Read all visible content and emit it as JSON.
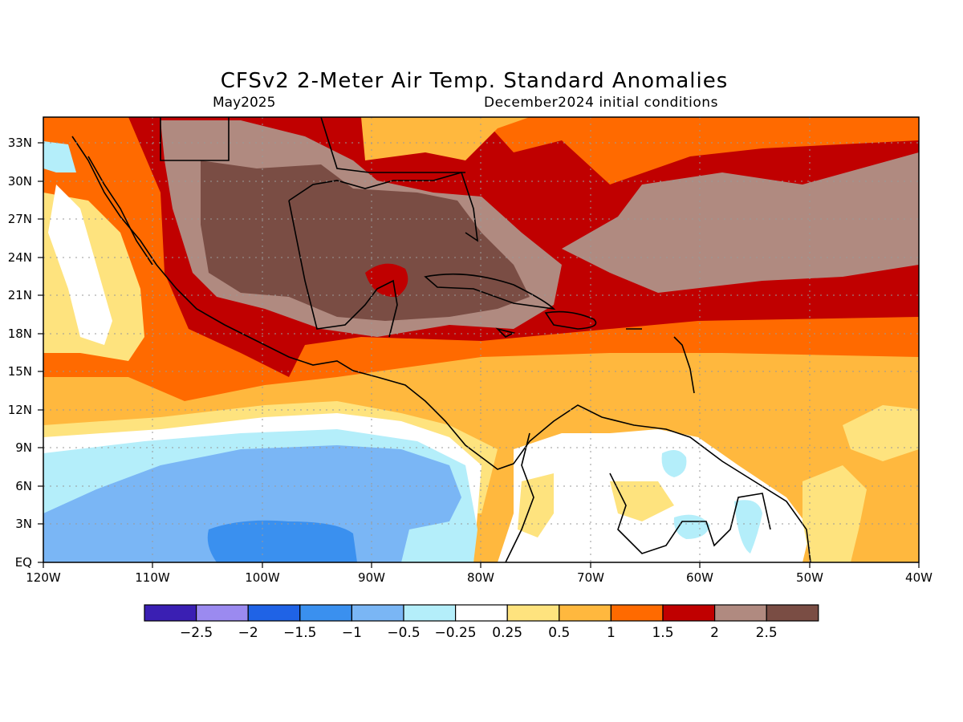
{
  "title": "CFSv2 2-Meter Air Temp. Standard Anomalies",
  "subtitle_left": "May2025",
  "subtitle_right": "December2024 initial conditions",
  "map": {
    "lat_ticks": [
      "EQ",
      "3N",
      "6N",
      "9N",
      "12N",
      "15N",
      "18N",
      "21N",
      "24N",
      "27N",
      "30N",
      "33N"
    ],
    "lon_ticks": [
      "120W",
      "110W",
      "100W",
      "90W",
      "80W",
      "70W",
      "60W",
      "50W",
      "40W"
    ],
    "lon_range": [
      -120,
      -40
    ],
    "lat_range": [
      0,
      35
    ],
    "gridlines": "dotted"
  },
  "colorbar": {
    "labels": [
      "-2.5",
      "-2",
      "-1.5",
      "-1",
      "-0.5",
      "-0.25",
      "0.25",
      "0.5",
      "1",
      "1.5",
      "2",
      "2.5"
    ],
    "colors": [
      "#3a1fb3",
      "#9b8af0",
      "#1f63e6",
      "#3a90ef",
      "#7ab6f5",
      "#b4eefa",
      "#ffffff",
      "#fee37e",
      "#ffb83e",
      "#ff6a00",
      "#c00000",
      "#b08a80",
      "#7a4d44"
    ]
  }
}
